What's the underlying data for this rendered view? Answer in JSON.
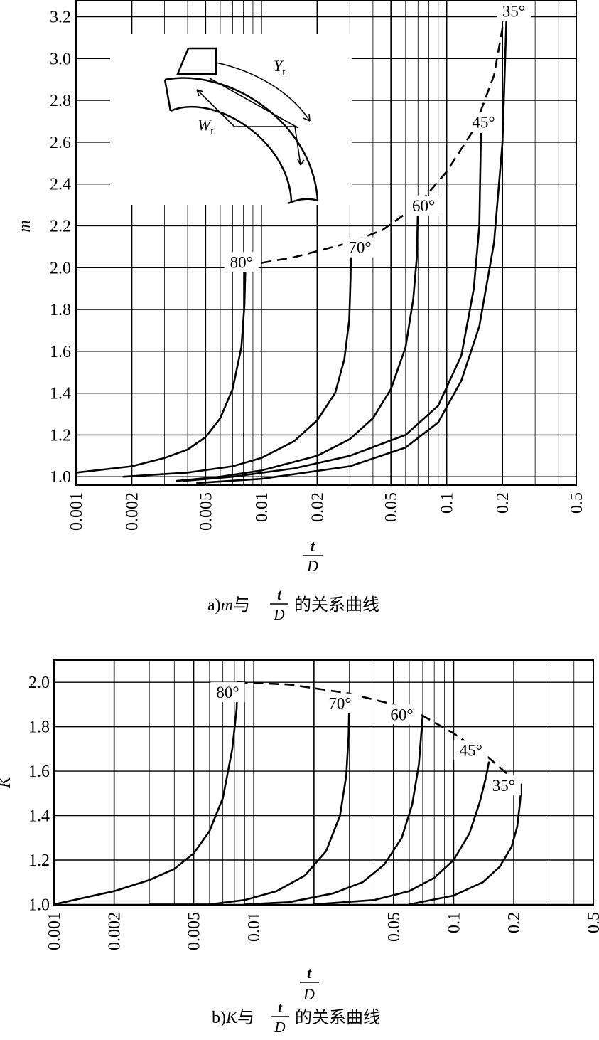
{
  "chart_data": [
    {
      "type": "line",
      "panel": "a",
      "caption": {
        "prefix": "a)",
        "var": "m",
        "mid": "与",
        "num": "t",
        "den": "D",
        "suffix": "的关系曲线"
      },
      "xlabel": {
        "num": "t",
        "den": "D"
      },
      "ylabel": "m",
      "x_scale": "log",
      "xlim": [
        0.001,
        0.5
      ],
      "ylim": [
        0.96,
        3.28
      ],
      "grid": true,
      "x_ticks": [
        {
          "v": 0.001,
          "label": "0.001"
        },
        {
          "v": 0.002,
          "label": "0.002"
        },
        {
          "v": 0.005,
          "label": "0.005"
        },
        {
          "v": 0.01,
          "label": "0.01"
        },
        {
          "v": 0.02,
          "label": "0.02"
        },
        {
          "v": 0.05,
          "label": "0.05"
        },
        {
          "v": 0.1,
          "label": "0.1"
        },
        {
          "v": 0.2,
          "label": "0.2"
        },
        {
          "v": 0.5,
          "label": "0.5"
        }
      ],
      "y_ticks": [
        {
          "v": 1.0,
          "label": "1.0"
        },
        {
          "v": 1.2,
          "label": "1.2"
        },
        {
          "v": 1.4,
          "label": "1.4"
        },
        {
          "v": 1.6,
          "label": "1.6"
        },
        {
          "v": 1.8,
          "label": "1.8"
        },
        {
          "v": 2.0,
          "label": "2.0"
        },
        {
          "v": 2.2,
          "label": "2.2"
        },
        {
          "v": 2.4,
          "label": "2.4"
        },
        {
          "v": 2.6,
          "label": "2.6"
        },
        {
          "v": 2.8,
          "label": "2.8"
        },
        {
          "v": 3.0,
          "label": "3.0"
        },
        {
          "v": 3.2,
          "label": "3.2"
        }
      ],
      "series": [
        {
          "name": "80°",
          "points": [
            [
              0.001,
              1.02
            ],
            [
              0.002,
              1.05
            ],
            [
              0.003,
              1.09
            ],
            [
              0.004,
              1.13
            ],
            [
              0.005,
              1.19
            ],
            [
              0.006,
              1.28
            ],
            [
              0.007,
              1.42
            ],
            [
              0.0078,
              1.62
            ],
            [
              0.0081,
              1.82
            ],
            [
              0.0082,
              2.0
            ]
          ],
          "label_at": [
            0.0078,
            2.0
          ]
        },
        {
          "name": "70°",
          "points": [
            [
              0.0018,
              1.0
            ],
            [
              0.004,
              1.02
            ],
            [
              0.007,
              1.05
            ],
            [
              0.01,
              1.09
            ],
            [
              0.015,
              1.17
            ],
            [
              0.02,
              1.27
            ],
            [
              0.025,
              1.4
            ],
            [
              0.028,
              1.56
            ],
            [
              0.0298,
              1.75
            ],
            [
              0.0303,
              1.95
            ],
            [
              0.0305,
              2.12
            ]
          ],
          "label_at": [
            0.034,
            2.07
          ]
        },
        {
          "name": "60°",
          "points": [
            [
              0.0035,
              0.98
            ],
            [
              0.006,
              1.0
            ],
            [
              0.01,
              1.03
            ],
            [
              0.02,
              1.1
            ],
            [
              0.03,
              1.18
            ],
            [
              0.04,
              1.28
            ],
            [
              0.05,
              1.42
            ],
            [
              0.06,
              1.62
            ],
            [
              0.066,
              1.85
            ],
            [
              0.069,
              2.05
            ],
            [
              0.07,
              2.3
            ]
          ],
          "label_at": [
            0.075,
            2.27
          ]
        },
        {
          "name": "45°",
          "points": [
            [
              0.0038,
              0.98
            ],
            [
              0.007,
              1.0
            ],
            [
              0.015,
              1.04
            ],
            [
              0.03,
              1.1
            ],
            [
              0.06,
              1.2
            ],
            [
              0.09,
              1.34
            ],
            [
              0.12,
              1.58
            ],
            [
              0.14,
              1.9
            ],
            [
              0.15,
              2.2
            ],
            [
              0.153,
              2.64
            ]
          ],
          "label_at": [
            0.158,
            2.67
          ]
        },
        {
          "name": "35°",
          "points": [
            [
              0.0045,
              0.97
            ],
            [
              0.01,
              0.99
            ],
            [
              0.03,
              1.05
            ],
            [
              0.06,
              1.14
            ],
            [
              0.09,
              1.26
            ],
            [
              0.12,
              1.46
            ],
            [
              0.15,
              1.72
            ],
            [
              0.18,
              2.12
            ],
            [
              0.2,
              2.6
            ],
            [
              0.212,
              3.3
            ]
          ],
          "label_at": [
            0.23,
            3.2
          ]
        }
      ],
      "envelope": {
        "style": "dashed",
        "points": [
          [
            0.0083,
            2.01
          ],
          [
            0.015,
            2.05
          ],
          [
            0.03,
            2.12
          ],
          [
            0.045,
            2.18
          ],
          [
            0.07,
            2.3
          ],
          [
            0.1,
            2.46
          ],
          [
            0.14,
            2.66
          ],
          [
            0.18,
            2.92
          ],
          [
            0.205,
            3.2
          ],
          [
            0.212,
            3.3
          ]
        ]
      },
      "inset": {
        "labels": {
          "y": "Y",
          "y_sub": "t",
          "w": "W",
          "w_sub": "t"
        }
      }
    },
    {
      "type": "line",
      "panel": "b",
      "caption": {
        "prefix": "b)",
        "var": "K",
        "mid": "与",
        "num": "t",
        "den": "D",
        "suffix": "的关系曲线"
      },
      "xlabel": {
        "num": "t",
        "den": "D"
      },
      "ylabel": "K",
      "x_scale": "log",
      "xlim": [
        0.001,
        0.5
      ],
      "ylim": [
        0.995,
        2.1
      ],
      "grid": true,
      "x_ticks": [
        {
          "v": 0.001,
          "label": "0.001"
        },
        {
          "v": 0.002,
          "label": "0.002"
        },
        {
          "v": 0.005,
          "label": "0.005"
        },
        {
          "v": 0.01,
          "label": "0.01"
        },
        {
          "v": 0.05,
          "label": "0.05"
        },
        {
          "v": 0.1,
          "label": "0.1"
        },
        {
          "v": 0.2,
          "label": "0.2"
        },
        {
          "v": 0.5,
          "label": "0.5"
        }
      ],
      "y_ticks": [
        {
          "v": 1.0,
          "label": "1.0"
        },
        {
          "v": 1.2,
          "label": "1.2"
        },
        {
          "v": 1.4,
          "label": "1.4"
        },
        {
          "v": 1.6,
          "label": "1.6"
        },
        {
          "v": 1.8,
          "label": "1.8"
        },
        {
          "v": 2.0,
          "label": "2.0"
        }
      ],
      "series": [
        {
          "name": "80°",
          "points": [
            [
              0.001,
              1.0
            ],
            [
              0.002,
              1.06
            ],
            [
              0.003,
              1.11
            ],
            [
              0.004,
              1.16
            ],
            [
              0.005,
              1.23
            ],
            [
              0.006,
              1.33
            ],
            [
              0.007,
              1.48
            ],
            [
              0.0078,
              1.7
            ],
            [
              0.0082,
              1.88
            ],
            [
              0.0083,
              2.0
            ]
          ],
          "label_at": [
            0.0074,
            1.93
          ]
        },
        {
          "name": "70°",
          "points": [
            [
              0.003,
              1.0
            ],
            [
              0.006,
              1.0
            ],
            [
              0.009,
              1.02
            ],
            [
              0.013,
              1.06
            ],
            [
              0.018,
              1.13
            ],
            [
              0.023,
              1.24
            ],
            [
              0.027,
              1.4
            ],
            [
              0.029,
              1.58
            ],
            [
              0.0298,
              1.76
            ],
            [
              0.03,
              1.88
            ]
          ],
          "label_at": [
            0.027,
            1.88
          ]
        },
        {
          "name": "60°",
          "points": [
            [
              0.009,
              1.0
            ],
            [
              0.015,
              1.01
            ],
            [
              0.025,
              1.05
            ],
            [
              0.035,
              1.1
            ],
            [
              0.045,
              1.18
            ],
            [
              0.055,
              1.3
            ],
            [
              0.062,
              1.45
            ],
            [
              0.067,
              1.63
            ],
            [
              0.069,
              1.78
            ],
            [
              0.07,
              1.85
            ]
          ],
          "label_at": [
            0.055,
            1.83
          ]
        },
        {
          "name": "45°",
          "points": [
            [
              0.02,
              1.0
            ],
            [
              0.04,
              1.02
            ],
            [
              0.06,
              1.06
            ],
            [
              0.08,
              1.12
            ],
            [
              0.1,
              1.2
            ],
            [
              0.12,
              1.32
            ],
            [
              0.135,
              1.46
            ],
            [
              0.145,
              1.57
            ],
            [
              0.15,
              1.64
            ]
          ],
          "label_at": [
            0.122,
            1.67
          ]
        },
        {
          "name": "35°",
          "points": [
            [
              0.06,
              1.0
            ],
            [
              0.1,
              1.04
            ],
            [
              0.14,
              1.1
            ],
            [
              0.17,
              1.17
            ],
            [
              0.195,
              1.26
            ],
            [
              0.208,
              1.35
            ],
            [
              0.215,
              1.46
            ],
            [
              0.218,
              1.54
            ]
          ],
          "label_at": [
            0.178,
            1.51
          ]
        }
      ],
      "envelope": {
        "style": "dashed",
        "points": [
          [
            0.0083,
            2.0
          ],
          [
            0.015,
            1.99
          ],
          [
            0.03,
            1.95
          ],
          [
            0.05,
            1.9
          ],
          [
            0.07,
            1.85
          ],
          [
            0.1,
            1.77
          ],
          [
            0.15,
            1.66
          ],
          [
            0.19,
            1.58
          ],
          [
            0.218,
            1.54
          ]
        ]
      }
    }
  ]
}
